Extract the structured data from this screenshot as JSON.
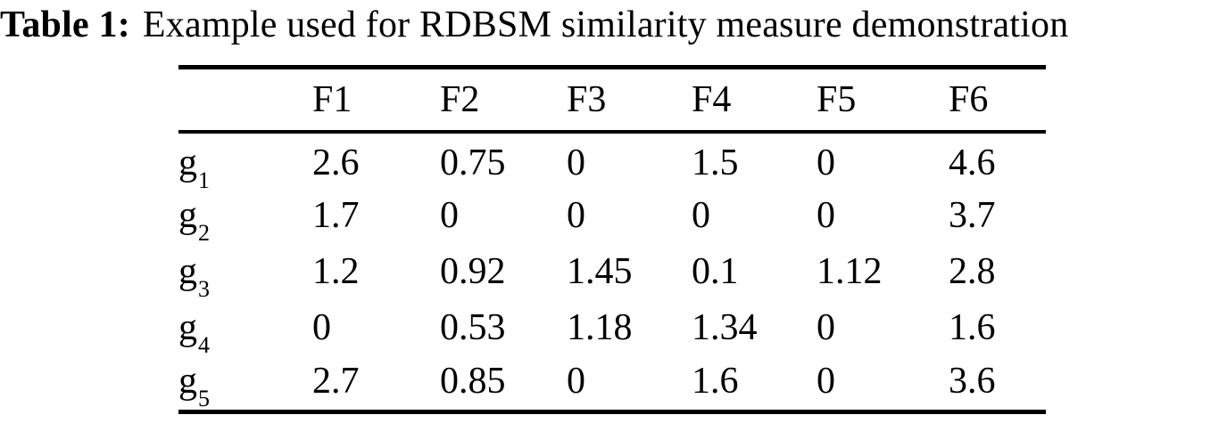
{
  "title": {
    "label": "Table 1:",
    "caption": "Example used for RDBSM similarity measure demonstration"
  },
  "table": {
    "columns": [
      "F1",
      "F2",
      "F3",
      "F4",
      "F5",
      "F6"
    ],
    "rows": [
      {
        "label_base": "g",
        "label_sub": "1",
        "values": [
          "2.6",
          "0.75",
          "0",
          "1.5",
          "0",
          "4.6"
        ]
      },
      {
        "label_base": "g",
        "label_sub": "2",
        "values": [
          "1.7",
          "0",
          "0",
          "0",
          "0",
          "3.7"
        ]
      },
      {
        "label_base": "g",
        "label_sub": "3",
        "values": [
          "1.2",
          "0.92",
          "1.45",
          "0.1",
          "1.12",
          "2.8"
        ]
      },
      {
        "label_base": "g",
        "label_sub": "4",
        "values": [
          "0",
          "0.53",
          "1.18",
          "1.34",
          "0",
          "1.6"
        ]
      },
      {
        "label_base": "g",
        "label_sub": "5",
        "values": [
          "2.7",
          "0.85",
          "0",
          "1.6",
          "0",
          "3.6"
        ]
      }
    ]
  },
  "chart_data": {
    "type": "table",
    "title": "Table 1: Example used for RDBSM similarity measure demonstration",
    "columns": [
      "",
      "F1",
      "F2",
      "F3",
      "F4",
      "F5",
      "F6"
    ],
    "rows": [
      [
        "g1",
        2.6,
        0.75,
        0,
        1.5,
        0,
        4.6
      ],
      [
        "g2",
        1.7,
        0,
        0,
        0,
        0,
        3.7
      ],
      [
        "g3",
        1.2,
        0.92,
        1.45,
        0.1,
        1.12,
        2.8
      ],
      [
        "g4",
        0,
        0.53,
        1.18,
        1.34,
        0,
        1.6
      ],
      [
        "g5",
        2.7,
        0.85,
        0,
        1.6,
        0,
        3.6
      ]
    ],
    "text_color": "#000000",
    "background_color": "#ffffff"
  }
}
